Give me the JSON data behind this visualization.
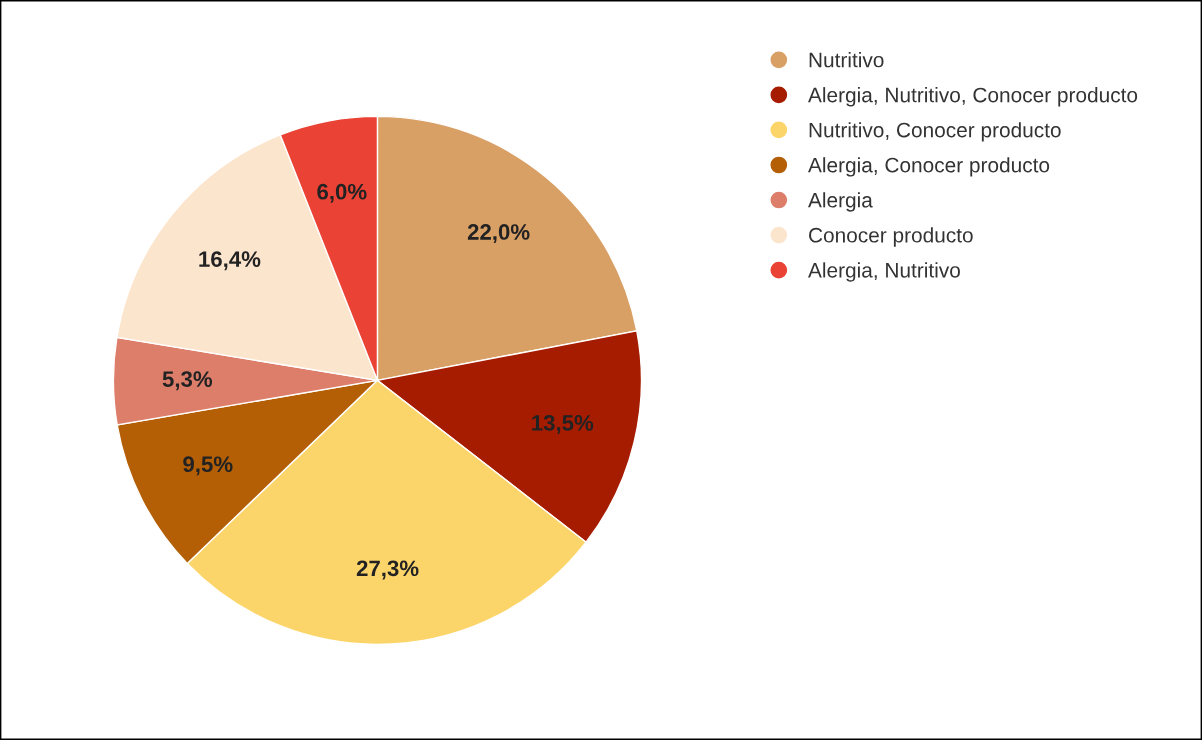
{
  "chart_data": {
    "type": "pie",
    "categories": [
      "Nutritivo",
      "Alergia, Nutritivo, Conocer producto",
      "Nutritivo, Conocer producto",
      "Alergia, Conocer producto",
      "Alergia",
      "Conocer producto",
      "Alergia, Nutritivo"
    ],
    "values": [
      22.0,
      13.5,
      27.3,
      9.5,
      5.3,
      16.4,
      6.0
    ],
    "value_labels": [
      "22,0%",
      "13,5%",
      "27,3%",
      "9,5%",
      "5,3%",
      "16,4%",
      "6,0%"
    ],
    "colors": [
      "#d9a066",
      "#a61c00",
      "#fcd56a",
      "#b45f06",
      "#dd7e6b",
      "#fce5cd",
      "#ea4335"
    ],
    "legend": "top right"
  }
}
